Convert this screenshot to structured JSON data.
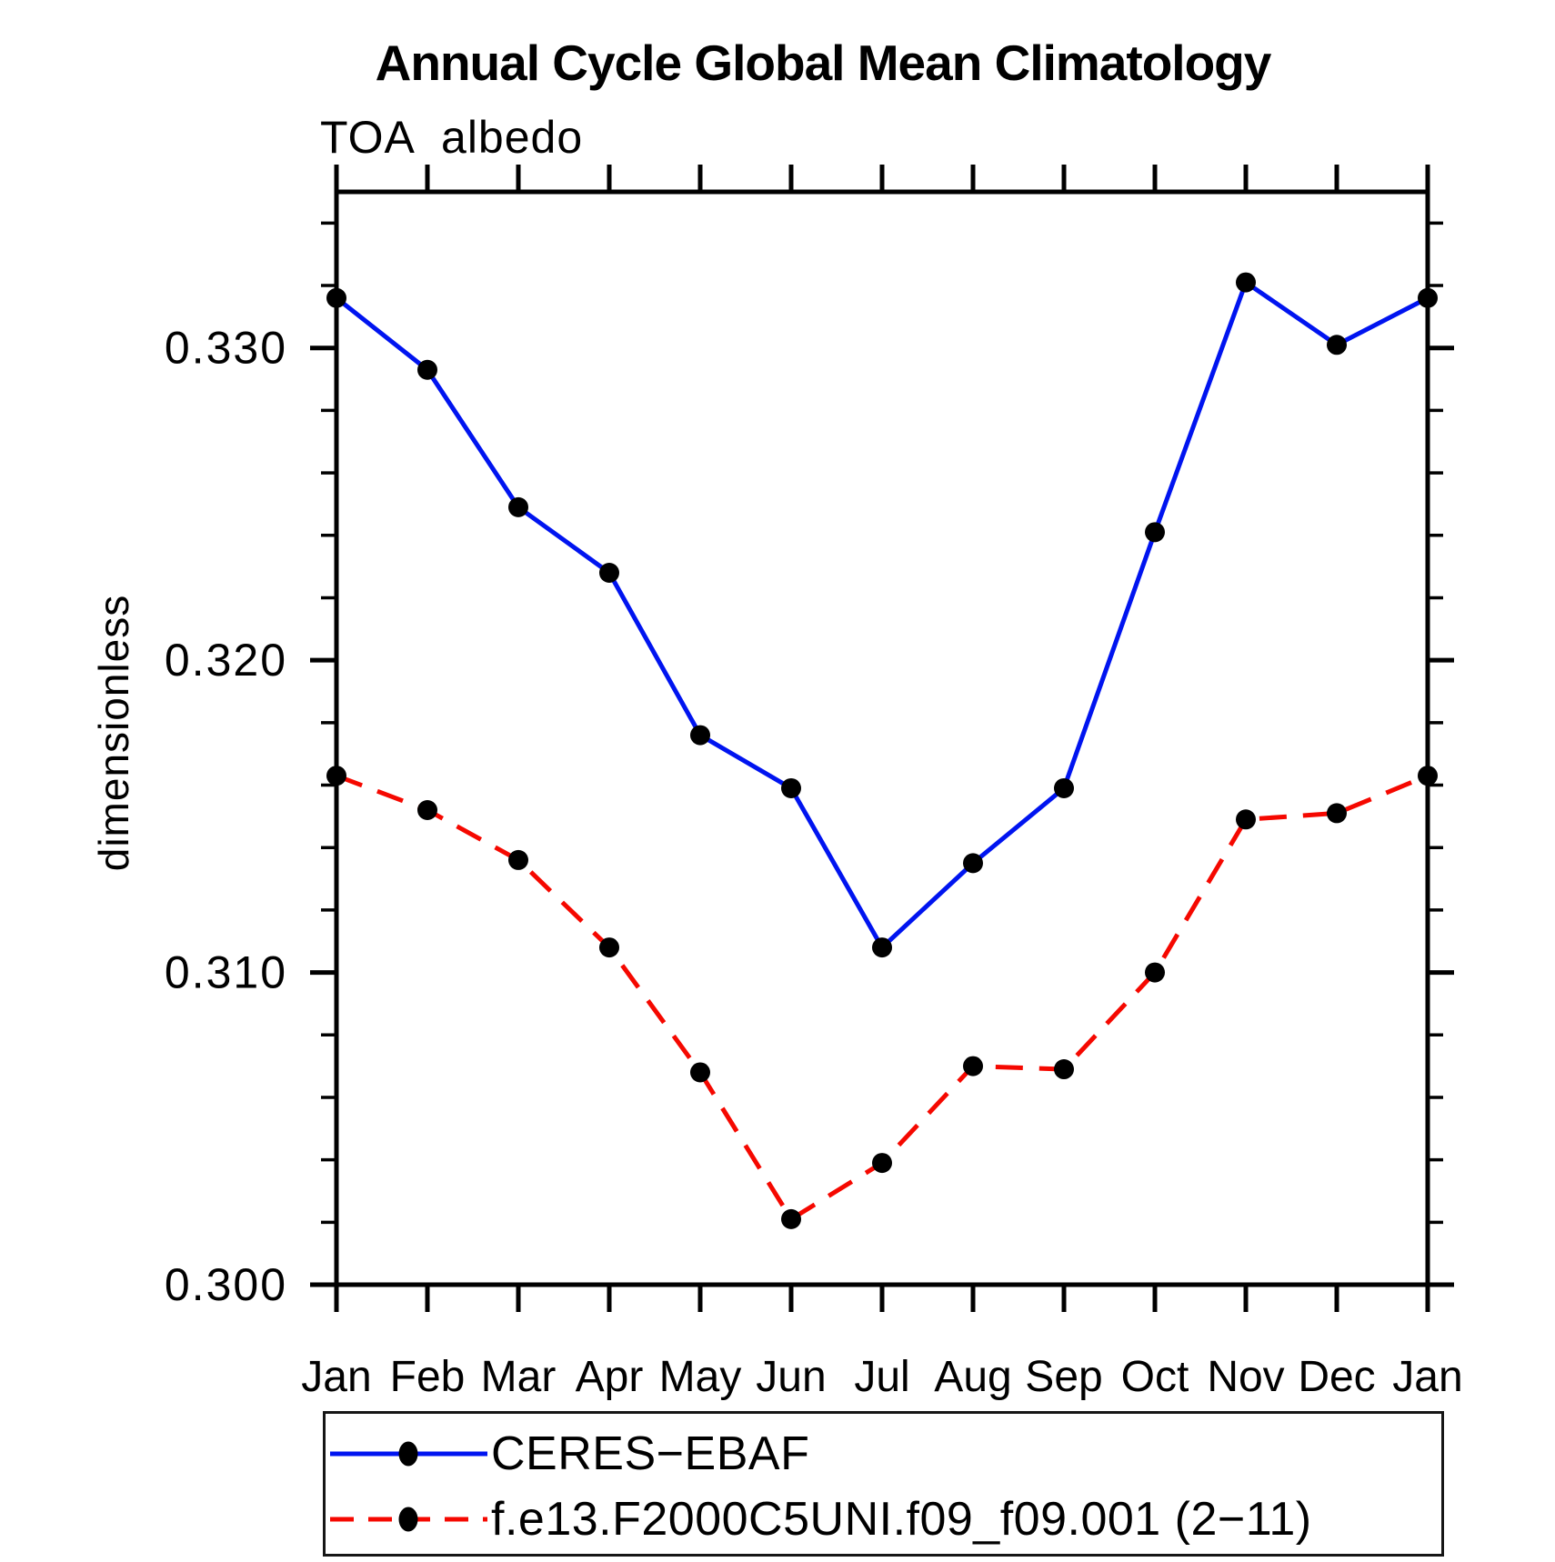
{
  "title": "Annual Cycle Global Mean Climatology",
  "left_string": "TOA albedo",
  "ylabel": "dimensionless",
  "colors": {
    "axis": "#000000",
    "background": "#ffffff",
    "obs_line": "#0014f0",
    "model_line": "#f50800",
    "marker": "#000000",
    "legend_border": "#161616"
  },
  "legend": {
    "entries": [
      {
        "label": "CERES−EBAF",
        "style": "solid",
        "color": "#0014f0"
      },
      {
        "label": "f.e13.F2000C5UNI.f09_f09.001 (2−11)",
        "style": "dashed",
        "color": "#f50800"
      }
    ]
  },
  "chart_data": {
    "type": "line",
    "title": "Annual Cycle Global Mean Climatology",
    "subtitle_left": "TOA albedo",
    "xlabel": "",
    "ylabel": "dimensionless",
    "categories": [
      "Jan",
      "Feb",
      "Mar",
      "Apr",
      "May",
      "Jun",
      "Jul",
      "Aug",
      "Sep",
      "Oct",
      "Nov",
      "Dec",
      "Jan"
    ],
    "ylim": [
      0.3,
      0.335
    ],
    "ytick_major": [
      0.3,
      0.31,
      0.32,
      0.33
    ],
    "ytick_labels": [
      "0.300",
      "0.310",
      "0.320",
      "0.330"
    ],
    "ytick_minor_step": 0.002,
    "grid": false,
    "legend_position": "bottom",
    "series": [
      {
        "name": "CERES−EBAF",
        "color": "#0014f0",
        "style": "solid",
        "marker": "circle",
        "marker_color": "#000000",
        "values": [
          0.3316,
          0.3293,
          0.3249,
          0.3228,
          0.3176,
          0.3159,
          0.3108,
          0.3135,
          0.3159,
          0.3241,
          0.3321,
          0.3301,
          0.3316
        ]
      },
      {
        "name": "f.e13.F2000C5UNI.f09_f09.001 (2−11)",
        "color": "#f50800",
        "style": "dashed",
        "marker": "circle",
        "marker_color": "#000000",
        "values": [
          0.3163,
          0.3152,
          0.3136,
          0.3108,
          0.3068,
          0.3021,
          0.3039,
          0.307,
          0.3069,
          0.31,
          0.3149,
          0.3151,
          0.3163
        ]
      }
    ]
  }
}
